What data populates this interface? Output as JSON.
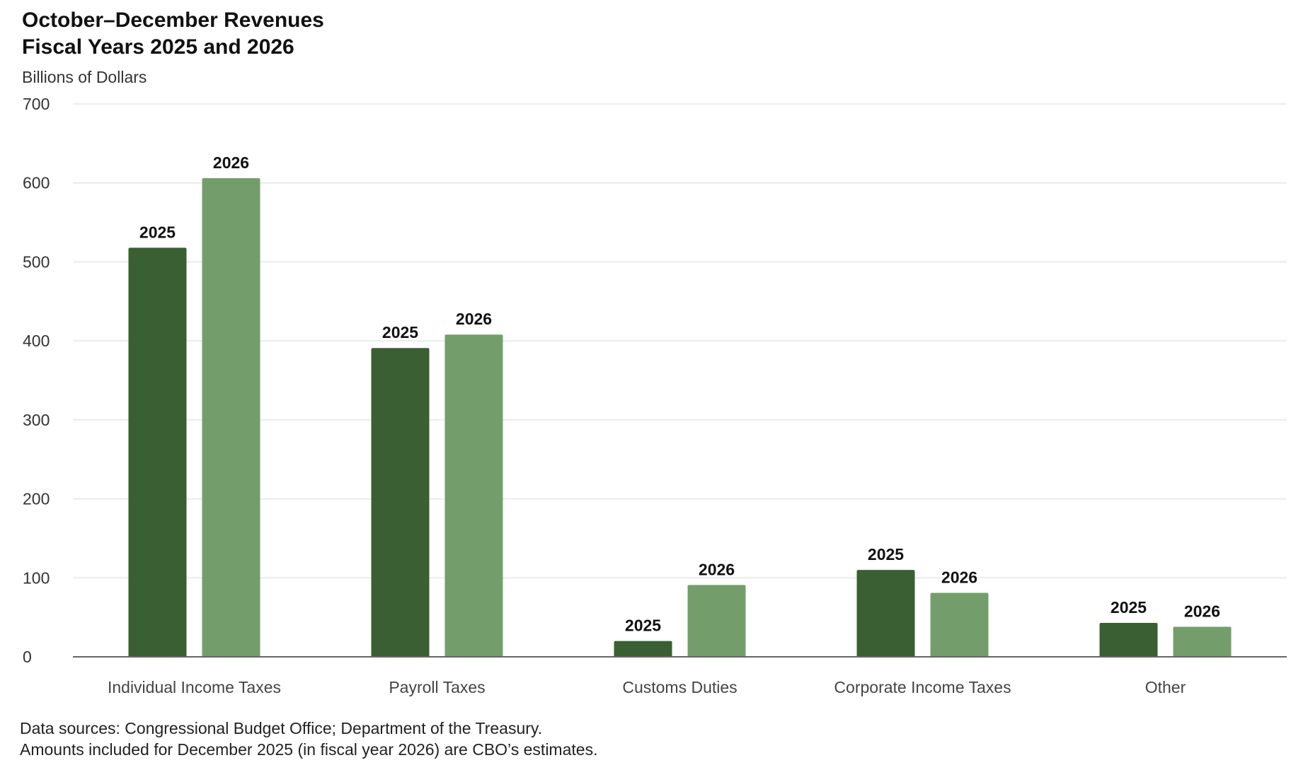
{
  "chart_data": {
    "type": "bar",
    "title": "October–December Revenues",
    "subtitle": "Fiscal Years 2025 and 2026",
    "ylabel": "Billions of Dollars",
    "xlabel": "",
    "ylim": [
      0,
      700
    ],
    "yticks": [
      0,
      100,
      200,
      300,
      400,
      500,
      600,
      700
    ],
    "grid": true,
    "categories": [
      "Individual Income Taxes",
      "Payroll Taxes",
      "Customs Duties",
      "Corporate Income Taxes",
      "Other"
    ],
    "series": [
      {
        "name": "2025",
        "color": "#3a5f32",
        "values": [
          518,
          391,
          20,
          110,
          43
        ]
      },
      {
        "name": "2026",
        "color": "#739e6b",
        "values": [
          606,
          408,
          91,
          81,
          38
        ]
      }
    ]
  },
  "footnotes": [
    "Data sources: Congressional Budget Office; Department of the Treasury.",
    "Amounts included for December 2025 (in fiscal year 2026) are CBO’s estimates."
  ]
}
